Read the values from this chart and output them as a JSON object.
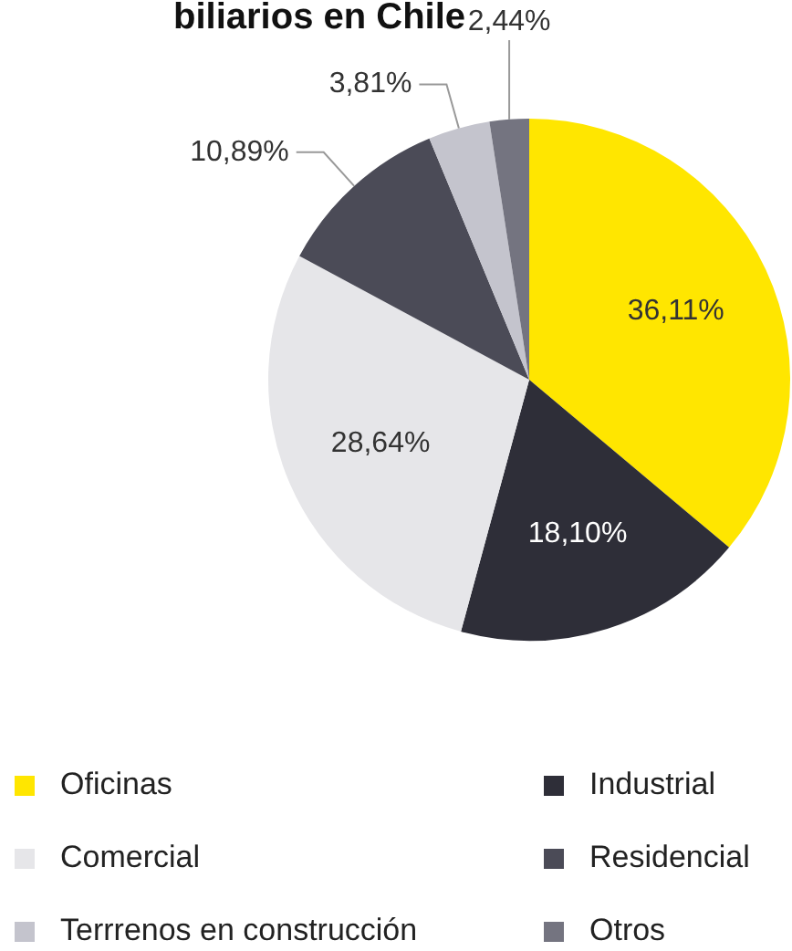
{
  "chart_data": {
    "type": "pie",
    "title": "biliarios en Chile",
    "categories": [
      "Oficinas",
      "Industrial",
      "Comercial",
      "Residencial",
      "Terrrenos en construcción",
      "Otros"
    ],
    "values": [
      36.11,
      18.1,
      28.64,
      10.89,
      3.81,
      2.44
    ],
    "value_labels": [
      "36,11%",
      "18,10%",
      "28,64%",
      "10,89%",
      "3,81%",
      "2,44%"
    ],
    "colors": [
      "#ffe600",
      "#2e2e38",
      "#e6e6e9",
      "#4b4b57",
      "#c4c4cd",
      "#747480"
    ],
    "legend": "bottom"
  }
}
